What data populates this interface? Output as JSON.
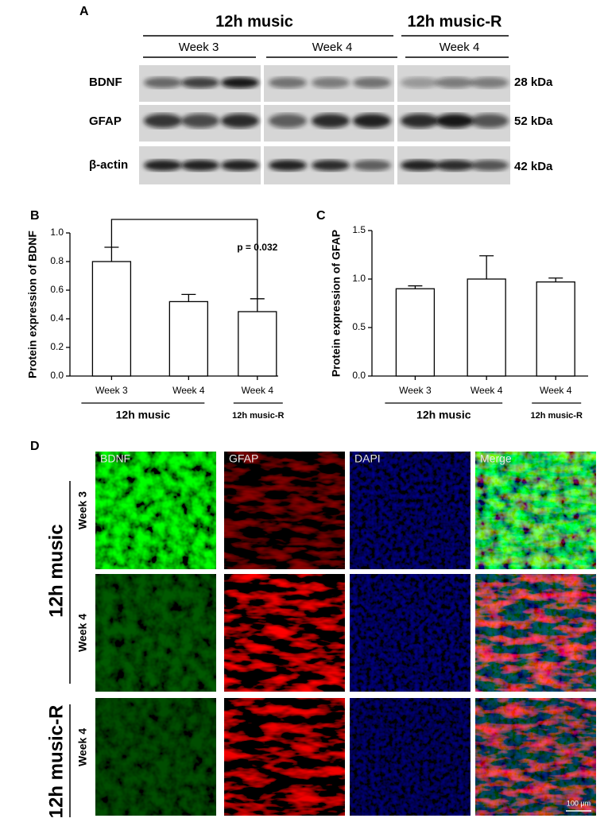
{
  "figure_a": {
    "panel": "A",
    "groups": [
      "12h music",
      "12h music-R"
    ],
    "weeks": [
      "Week 3",
      "Week 4",
      "Week 4"
    ],
    "rows": [
      {
        "protein": "BDNF",
        "weight": "28 kDa"
      },
      {
        "protein": "GFAP",
        "weight": "52 kDa"
      },
      {
        "protein": "β-actin",
        "weight": "42 kDa"
      }
    ]
  },
  "chart_data": [
    {
      "type": "bar",
      "panel": "B",
      "ylabel": "Protein expression of BDNF",
      "categories": [
        "Week 3",
        "Week 4",
        "Week 4"
      ],
      "values": [
        0.8,
        0.52,
        0.45
      ],
      "errors": [
        0.1,
        0.05,
        0.09
      ],
      "color": "#ffffff",
      "ylim": [
        0,
        1.0
      ],
      "yticks": [
        {
          "value": 0,
          "label": "0.0"
        },
        0.2,
        0.4,
        0.6,
        0.8,
        {
          "value": 1.0,
          "label": "1.0"
        }
      ],
      "group_labels": [
        "12h music",
        "12h music-R"
      ],
      "annotation": "p = 0.032"
    },
    {
      "type": "bar",
      "panel": "C",
      "ylabel": "Protein expression of GFAP",
      "categories": [
        "Week 3",
        "Week 4",
        "Week 4"
      ],
      "values": [
        0.9,
        1.0,
        0.97
      ],
      "errors": [
        0.03,
        0.24,
        0.04
      ],
      "color": "#ffffff",
      "ylim": [
        0,
        1.5
      ],
      "yticks": [
        {
          "value": 0,
          "label": "0.0"
        },
        0.5,
        {
          "value": 1.0,
          "label": "1.0"
        },
        1.5
      ],
      "group_labels": [
        "12h music",
        "12h music-R"
      ]
    }
  ],
  "figure_d": {
    "panel": "D",
    "channels": [
      "BDNF",
      "GFAP",
      "DAPI",
      "Merge"
    ],
    "groups": [
      "12h music",
      "12h music-R"
    ],
    "rows": [
      "Week 3",
      "Week 4",
      "Week 4"
    ],
    "scale_bar": "100 μm"
  }
}
